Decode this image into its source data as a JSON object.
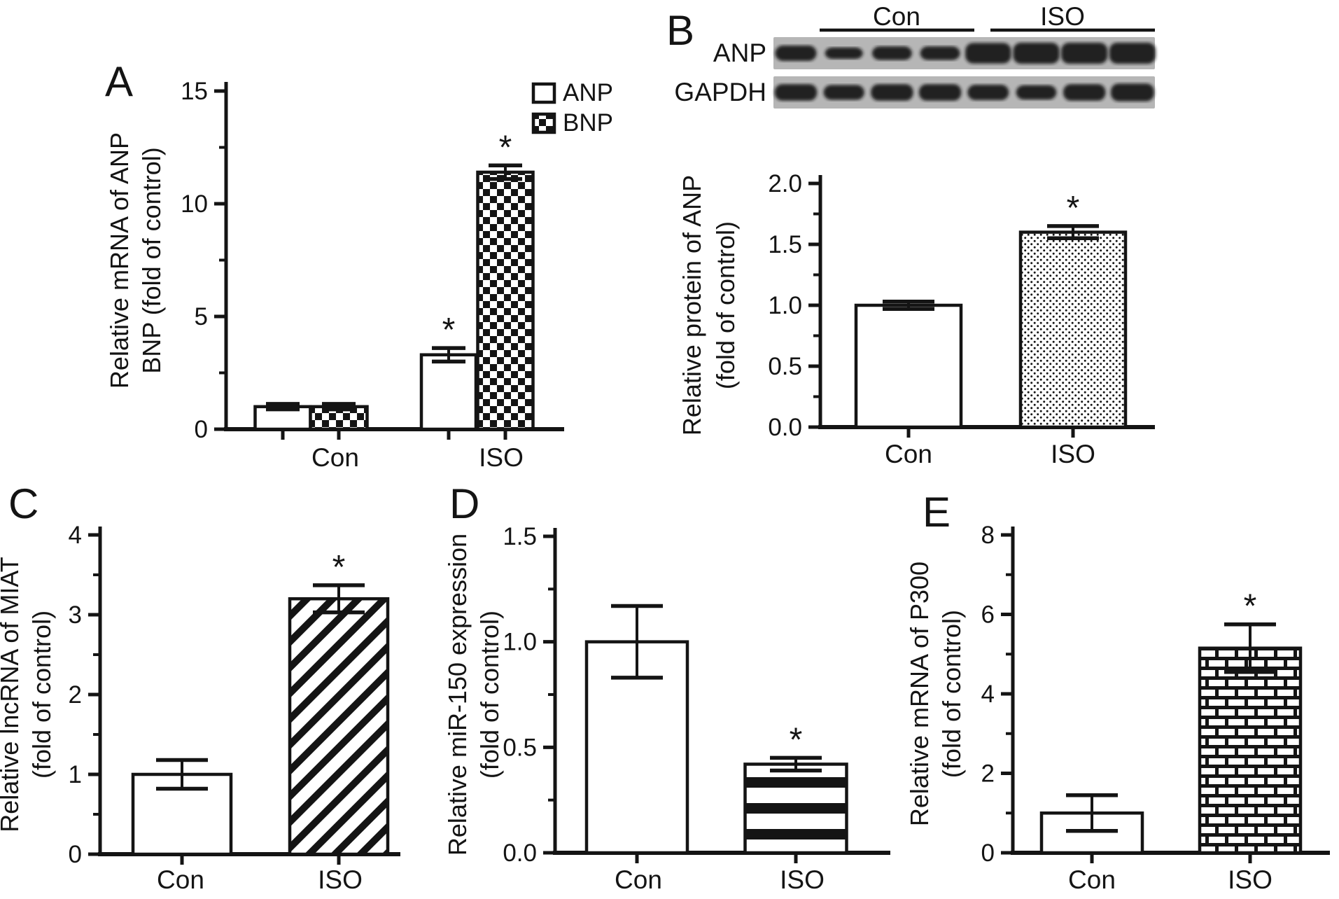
{
  "figure": {
    "bg": "#ffffff",
    "ink": "#141414",
    "blot_bg": "#b6b6b6",
    "band_color": "#161616"
  },
  "western_blot": {
    "panel": "B",
    "group_labels": [
      "Con",
      "ISO"
    ],
    "lanes_per_group": 4,
    "rows": [
      {
        "label": "ANP",
        "bands": [
          0.5,
          0.15,
          0.35,
          0.35,
          0.95,
          1.0,
          1.0,
          1.0
        ]
      },
      {
        "label": "GAPDH",
        "bands": [
          0.6,
          0.45,
          0.6,
          0.6,
          0.5,
          0.4,
          0.6,
          0.7
        ]
      }
    ]
  },
  "chart_data": [
    {
      "panel": "A",
      "type": "bar",
      "ylabel_lines": [
        "Relative mRNA of ANP",
        "BNP (fold of control)"
      ],
      "ylim": [
        0,
        15
      ],
      "yticks": [
        0,
        5,
        10,
        15
      ],
      "minor_ticks": [
        2.5,
        7.5,
        12.5
      ],
      "tick_decimals": 0,
      "categories": [
        "Con",
        "ISO"
      ],
      "legend": {
        "position": "top-right",
        "items": [
          {
            "label": "ANP",
            "pattern": "plain"
          },
          {
            "label": "BNP",
            "pattern": "checker"
          }
        ]
      },
      "bars": [
        {
          "category": "Con",
          "series": "ANP",
          "value": 1.0,
          "error": 0.12,
          "pattern": "plain",
          "sig": ""
        },
        {
          "category": "Con",
          "series": "BNP",
          "value": 1.0,
          "error": 0.12,
          "pattern": "checker",
          "sig": ""
        },
        {
          "category": "ISO",
          "series": "ANP",
          "value": 3.3,
          "error": 0.3,
          "pattern": "plain",
          "sig": "*"
        },
        {
          "category": "ISO",
          "series": "BNP",
          "value": 11.4,
          "error": 0.3,
          "pattern": "checker",
          "sig": "*"
        }
      ]
    },
    {
      "panel": "B",
      "type": "bar",
      "ylabel_lines": [
        "Relative protein of ANP",
        "(fold of control)"
      ],
      "ylim": [
        0,
        2
      ],
      "yticks": [
        0,
        0.5,
        1,
        1.5,
        2
      ],
      "minor_ticks": [
        0.25,
        0.75,
        1.25,
        1.75
      ],
      "tick_decimals": 1,
      "categories": [
        "Con",
        "ISO"
      ],
      "bars": [
        {
          "category": "Con",
          "value": 1.0,
          "error": 0.03,
          "pattern": "plain",
          "sig": ""
        },
        {
          "category": "ISO",
          "value": 1.6,
          "error": 0.05,
          "pattern": "dots",
          "sig": "*"
        }
      ]
    },
    {
      "panel": "C",
      "type": "bar",
      "ylabel_lines": [
        "Relative lncRNA of MIAT",
        "(fold of control)"
      ],
      "ylim": [
        0,
        4
      ],
      "yticks": [
        0,
        1,
        2,
        3,
        4
      ],
      "minor_ticks": [
        0.5,
        1.5,
        2.5,
        3.5
      ],
      "tick_decimals": 0,
      "categories": [
        "Con",
        "ISO"
      ],
      "bars": [
        {
          "category": "Con",
          "value": 1.0,
          "error": 0.18,
          "pattern": "plain",
          "sig": ""
        },
        {
          "category": "ISO",
          "value": 3.2,
          "error": 0.17,
          "pattern": "diagonal",
          "sig": "*"
        }
      ]
    },
    {
      "panel": "D",
      "type": "bar",
      "ylabel_lines": [
        "Relative miR-150 expression",
        "(fold of control)"
      ],
      "ylim": [
        0,
        1.5
      ],
      "yticks": [
        0,
        0.5,
        1,
        1.5
      ],
      "minor_ticks": [
        0.25,
        0.75,
        1.25
      ],
      "tick_decimals": 1,
      "categories": [
        "Con",
        "ISO"
      ],
      "bars": [
        {
          "category": "Con",
          "value": 1.0,
          "error": 0.17,
          "pattern": "plain",
          "sig": ""
        },
        {
          "category": "ISO",
          "value": 0.42,
          "error": 0.03,
          "pattern": "hlines",
          "sig": "*"
        }
      ]
    },
    {
      "panel": "E",
      "type": "bar",
      "ylabel_lines": [
        "Relative mRNA of P300",
        "(fold of control)"
      ],
      "ylim": [
        0,
        8
      ],
      "yticks": [
        0,
        2,
        4,
        6,
        8
      ],
      "minor_ticks": [
        1,
        3,
        5,
        7
      ],
      "tick_decimals": 0,
      "categories": [
        "Con",
        "ISO"
      ],
      "bars": [
        {
          "category": "Con",
          "value": 1.0,
          "error": 0.45,
          "pattern": "plain",
          "sig": ""
        },
        {
          "category": "ISO",
          "value": 5.15,
          "error": 0.6,
          "pattern": "brick",
          "sig": "*"
        }
      ]
    }
  ]
}
